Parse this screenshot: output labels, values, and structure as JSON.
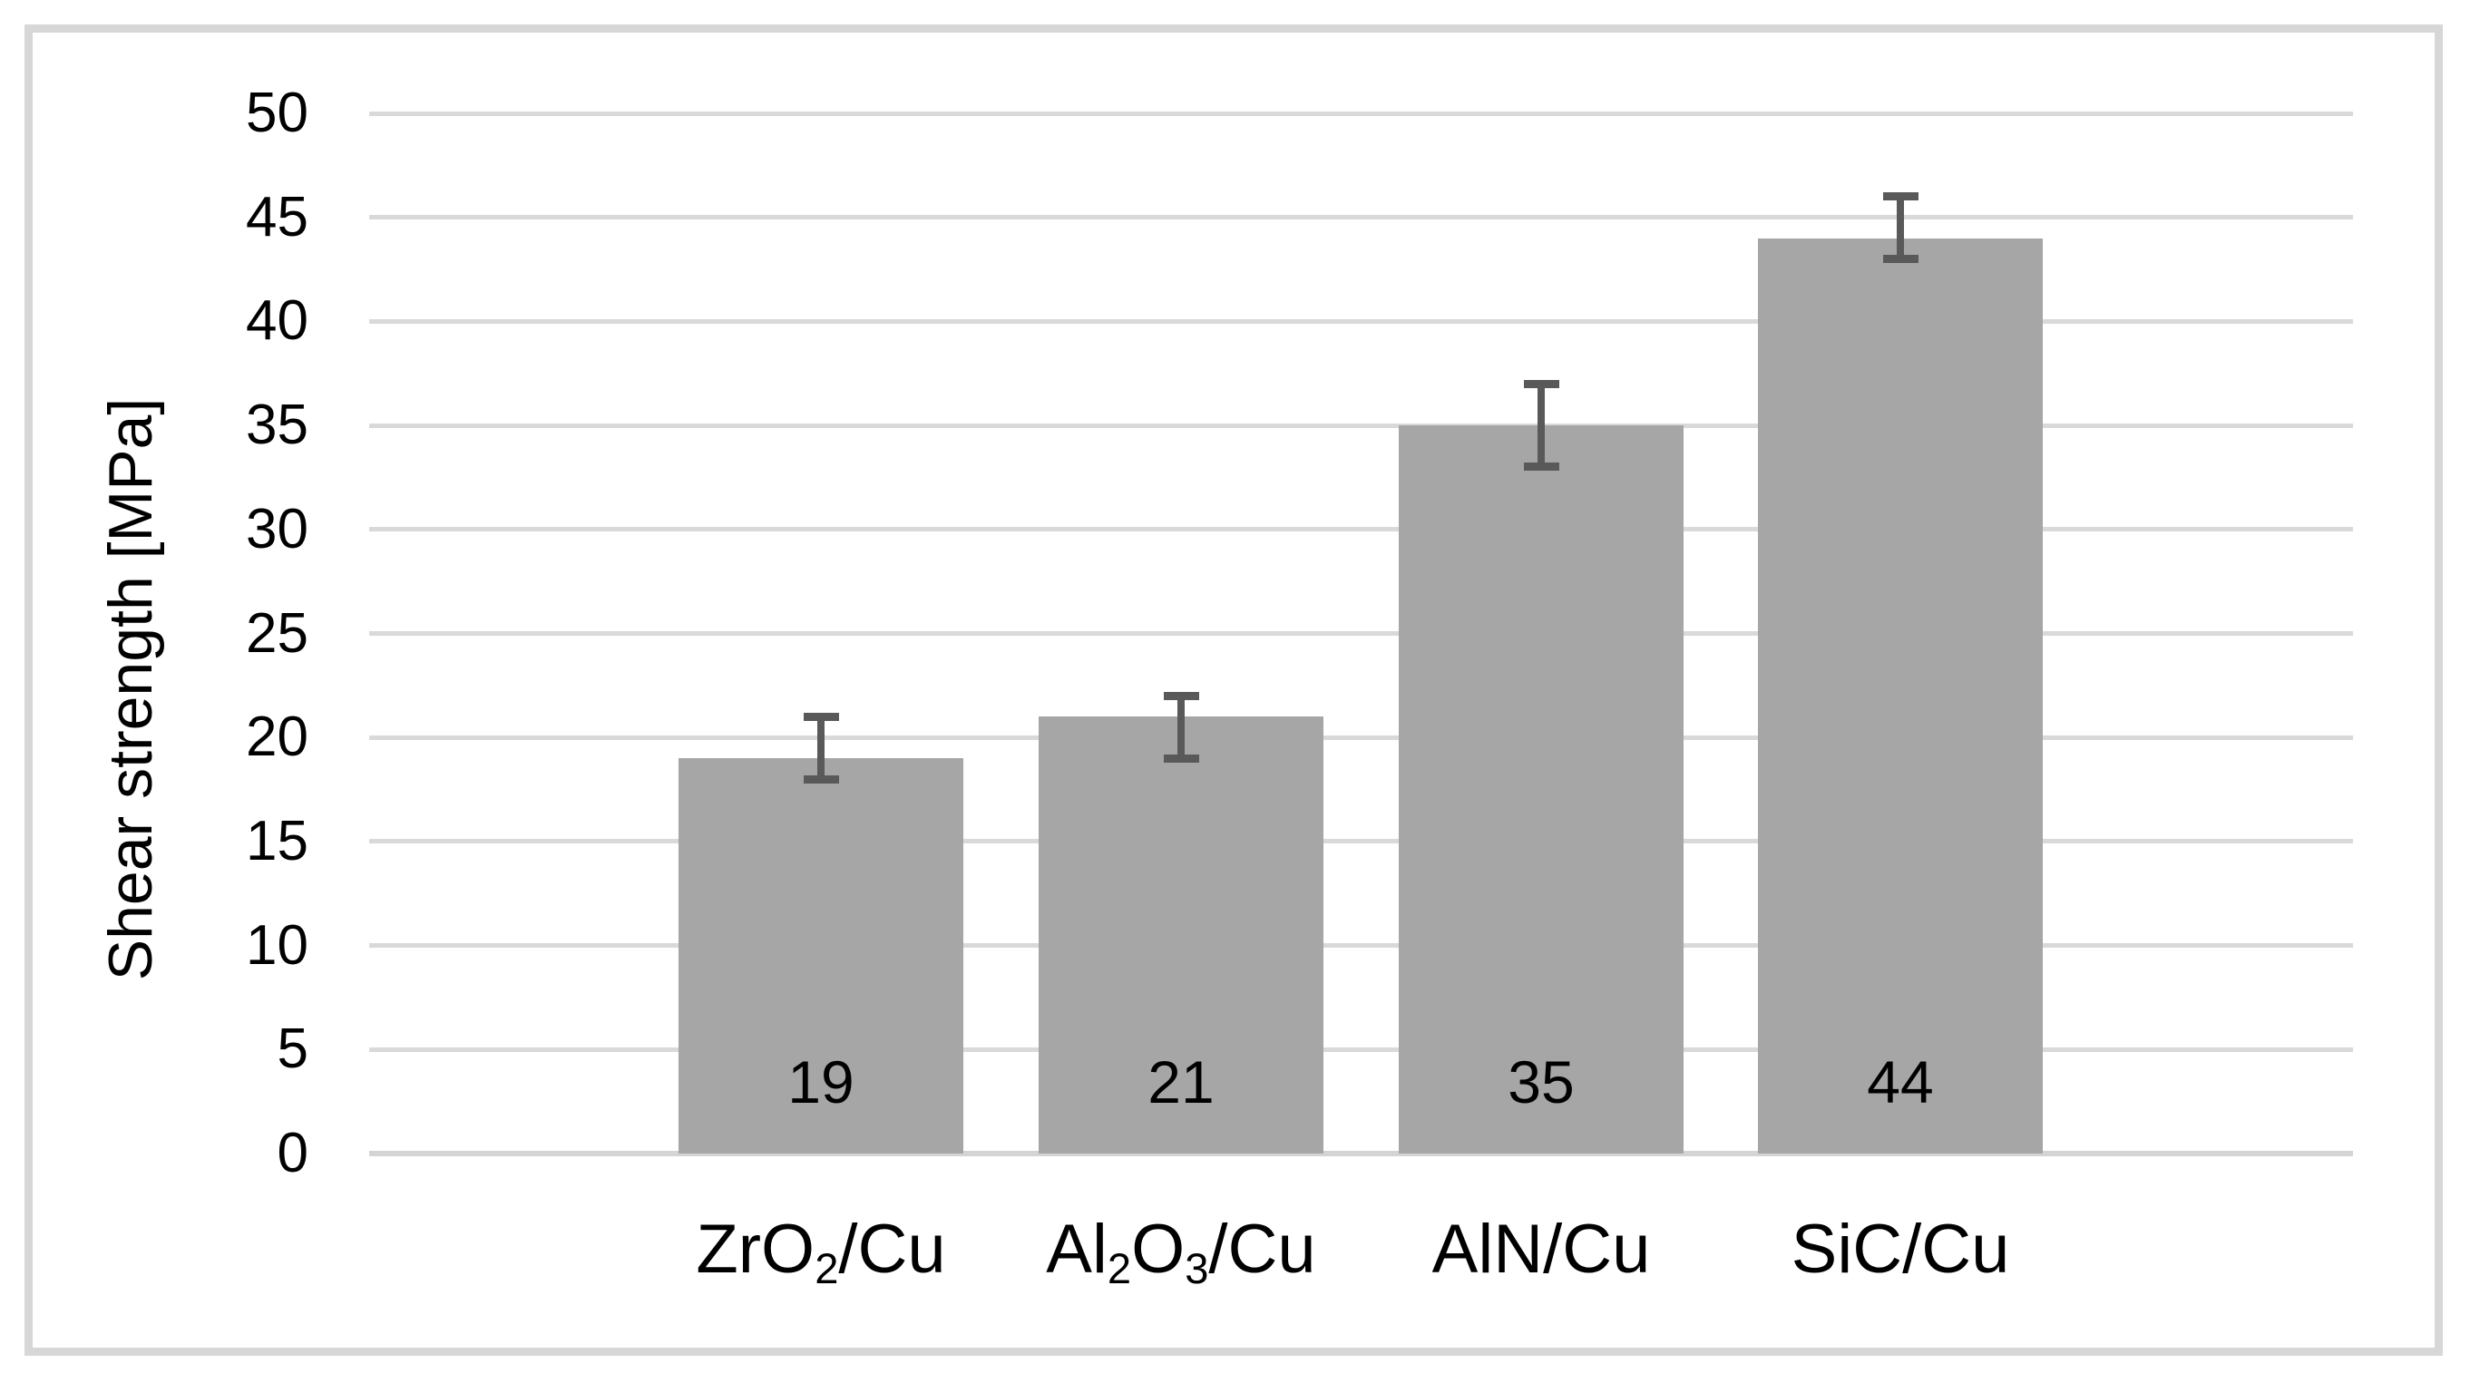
{
  "chart_data": {
    "type": "bar",
    "title": "",
    "ylabel": "Shear strength [MPa]",
    "xlabel": "",
    "categories": [
      "ZrO2/Cu",
      "Al2O3/Cu",
      "AlN/Cu",
      "SiC/Cu"
    ],
    "categories_rich": [
      [
        {
          "t": "ZrO"
        },
        {
          "t": "2",
          "sub": true
        },
        {
          "t": "/Cu"
        }
      ],
      [
        {
          "t": "Al"
        },
        {
          "t": "2",
          "sub": true
        },
        {
          "t": "O"
        },
        {
          "t": "3",
          "sub": true
        },
        {
          "t": "/Cu"
        }
      ],
      [
        {
          "t": "AlN/Cu"
        }
      ],
      [
        {
          "t": "SiC/Cu"
        }
      ]
    ],
    "values": [
      19,
      21,
      35,
      44
    ],
    "data_labels": [
      "19",
      "21",
      "35",
      "44"
    ],
    "error_bars": [
      {
        "low": 18,
        "high": 21
      },
      {
        "low": 19,
        "high": 22
      },
      {
        "low": 33,
        "high": 37
      },
      {
        "low": 43,
        "high": 46
      }
    ],
    "yticks": [
      0,
      5,
      10,
      15,
      20,
      25,
      30,
      35,
      40,
      45,
      50
    ],
    "ylim": [
      0,
      50
    ],
    "grid": true,
    "legend": "none",
    "colors": {
      "bar_fill": "#a6a6a6",
      "error_bar": "#595959",
      "gridline": "#d9d9d9",
      "axis_line": "#d4d4d4",
      "chart_border": "#d7d7d7",
      "text": "#000000",
      "background": "#ffffff"
    }
  }
}
